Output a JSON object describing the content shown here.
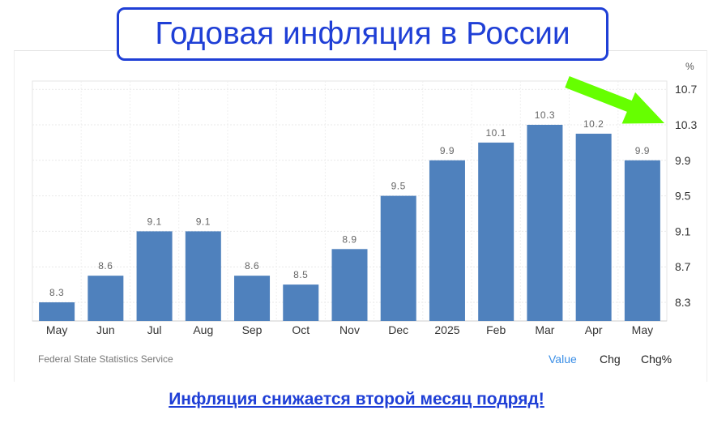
{
  "title": "Годовая инфляция в России",
  "caption": "Инфляция снижается второй месяц подряд!",
  "source": "Federal State Statistics Service",
  "controls": {
    "value": "Value",
    "chg": "Chg",
    "chg_pct": "Chg%"
  },
  "colors": {
    "bar": "#4f81bd",
    "accent": "#1f3fd6",
    "arrow": "#66ff00"
  },
  "chart_data": {
    "type": "bar",
    "unit": "%",
    "categories": [
      "May",
      "Jun",
      "Jul",
      "Aug",
      "Sep",
      "Oct",
      "Nov",
      "Dec",
      "2025",
      "Feb",
      "Mar",
      "Apr",
      "May"
    ],
    "values": [
      8.3,
      8.6,
      9.1,
      9.1,
      8.6,
      8.5,
      8.9,
      9.5,
      9.9,
      10.1,
      10.3,
      10.2,
      9.9
    ],
    "data_labels": [
      "8.3",
      "8.6",
      "9.1",
      "9.1",
      "8.6",
      "8.5",
      "8.9",
      "9.5",
      "9.9",
      "10.1",
      "10.3",
      "10.2",
      "9.9"
    ],
    "y_ticks": [
      "8.3",
      "8.7",
      "9.1",
      "9.5",
      "9.9",
      "10.3",
      "10.7"
    ],
    "y_tick_values": [
      8.3,
      8.7,
      9.1,
      9.5,
      9.9,
      10.3,
      10.7
    ],
    "ylim": [
      8.1,
      10.85
    ],
    "y_axis_side": "right",
    "grid": true,
    "annotation": "green arrow pointing to 10.3 tick"
  }
}
